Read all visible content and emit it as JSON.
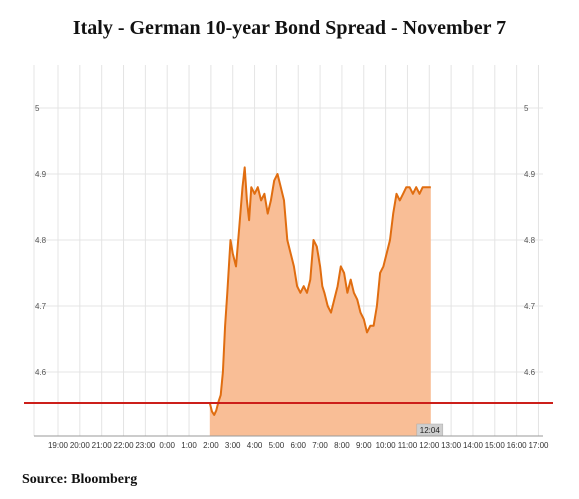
{
  "title": "Italy - German 10-year Bond Spread - November 7",
  "source": "Source: Bloomberg",
  "chart_data": {
    "type": "area",
    "title": "Italy - German 10-year Bond Spread - November 7",
    "xlabel": "",
    "ylabel": "",
    "x_tick_labels": [
      "19:00",
      "20:00",
      "21:00",
      "22:00",
      "23:00",
      "0:00",
      "1:00",
      "2:00",
      "3:00",
      "4:00",
      "5:00",
      "6:00",
      "7:00",
      "8:00",
      "9:00",
      "10:00",
      "11:00",
      "12:00",
      "13:00",
      "14:00",
      "15:00",
      "16:00",
      "17:00"
    ],
    "y_ticks": [
      4.6,
      4.7,
      4.8,
      4.9,
      5
    ],
    "ylim": [
      4.5,
      5.05
    ],
    "grid": true,
    "line_color": "#e06d10",
    "fill_color": "#f9be96",
    "reference_line": {
      "value": 4.553,
      "color": "#cc1f1a"
    },
    "end_label": "12:04",
    "series": [
      {
        "x": [
          1.95,
          2.05,
          2.15,
          2.25,
          2.35,
          2.45,
          2.55,
          2.65,
          2.75,
          2.9,
          3.0,
          3.15,
          3.3,
          3.45,
          3.55,
          3.65,
          3.75,
          3.85,
          4.0,
          4.15,
          4.3,
          4.45,
          4.6,
          4.75,
          4.9,
          5.05,
          5.2,
          5.35,
          5.5,
          5.65,
          5.8,
          5.95,
          6.1,
          6.25,
          6.4,
          6.55,
          6.7,
          6.85,
          7.0,
          7.1,
          7.2,
          7.35,
          7.5,
          7.65,
          7.8,
          7.95,
          8.1,
          8.25,
          8.4,
          8.55,
          8.7,
          8.85,
          9.0,
          9.15,
          9.3,
          9.45,
          9.6,
          9.75,
          9.9,
          10.05,
          10.2,
          10.35,
          10.5,
          10.65,
          10.8,
          10.95,
          11.1,
          11.25,
          11.4,
          11.55,
          11.7,
          11.85,
          12.0,
          12.07
        ],
        "values": [
          4.553,
          4.54,
          4.535,
          4.542,
          4.555,
          4.565,
          4.6,
          4.67,
          4.72,
          4.8,
          4.78,
          4.76,
          4.82,
          4.88,
          4.91,
          4.86,
          4.83,
          4.88,
          4.87,
          4.88,
          4.86,
          4.87,
          4.84,
          4.86,
          4.89,
          4.9,
          4.88,
          4.86,
          4.8,
          4.78,
          4.76,
          4.73,
          4.72,
          4.73,
          4.72,
          4.74,
          4.8,
          4.79,
          4.76,
          4.73,
          4.72,
          4.7,
          4.69,
          4.71,
          4.73,
          4.76,
          4.75,
          4.72,
          4.74,
          4.72,
          4.71,
          4.69,
          4.68,
          4.66,
          4.67,
          4.67,
          4.7,
          4.75,
          4.76,
          4.78,
          4.8,
          4.84,
          4.87,
          4.86,
          4.87,
          4.88,
          4.88,
          4.87,
          4.88,
          4.87,
          4.88,
          4.88,
          4.88,
          4.88
        ]
      }
    ]
  }
}
